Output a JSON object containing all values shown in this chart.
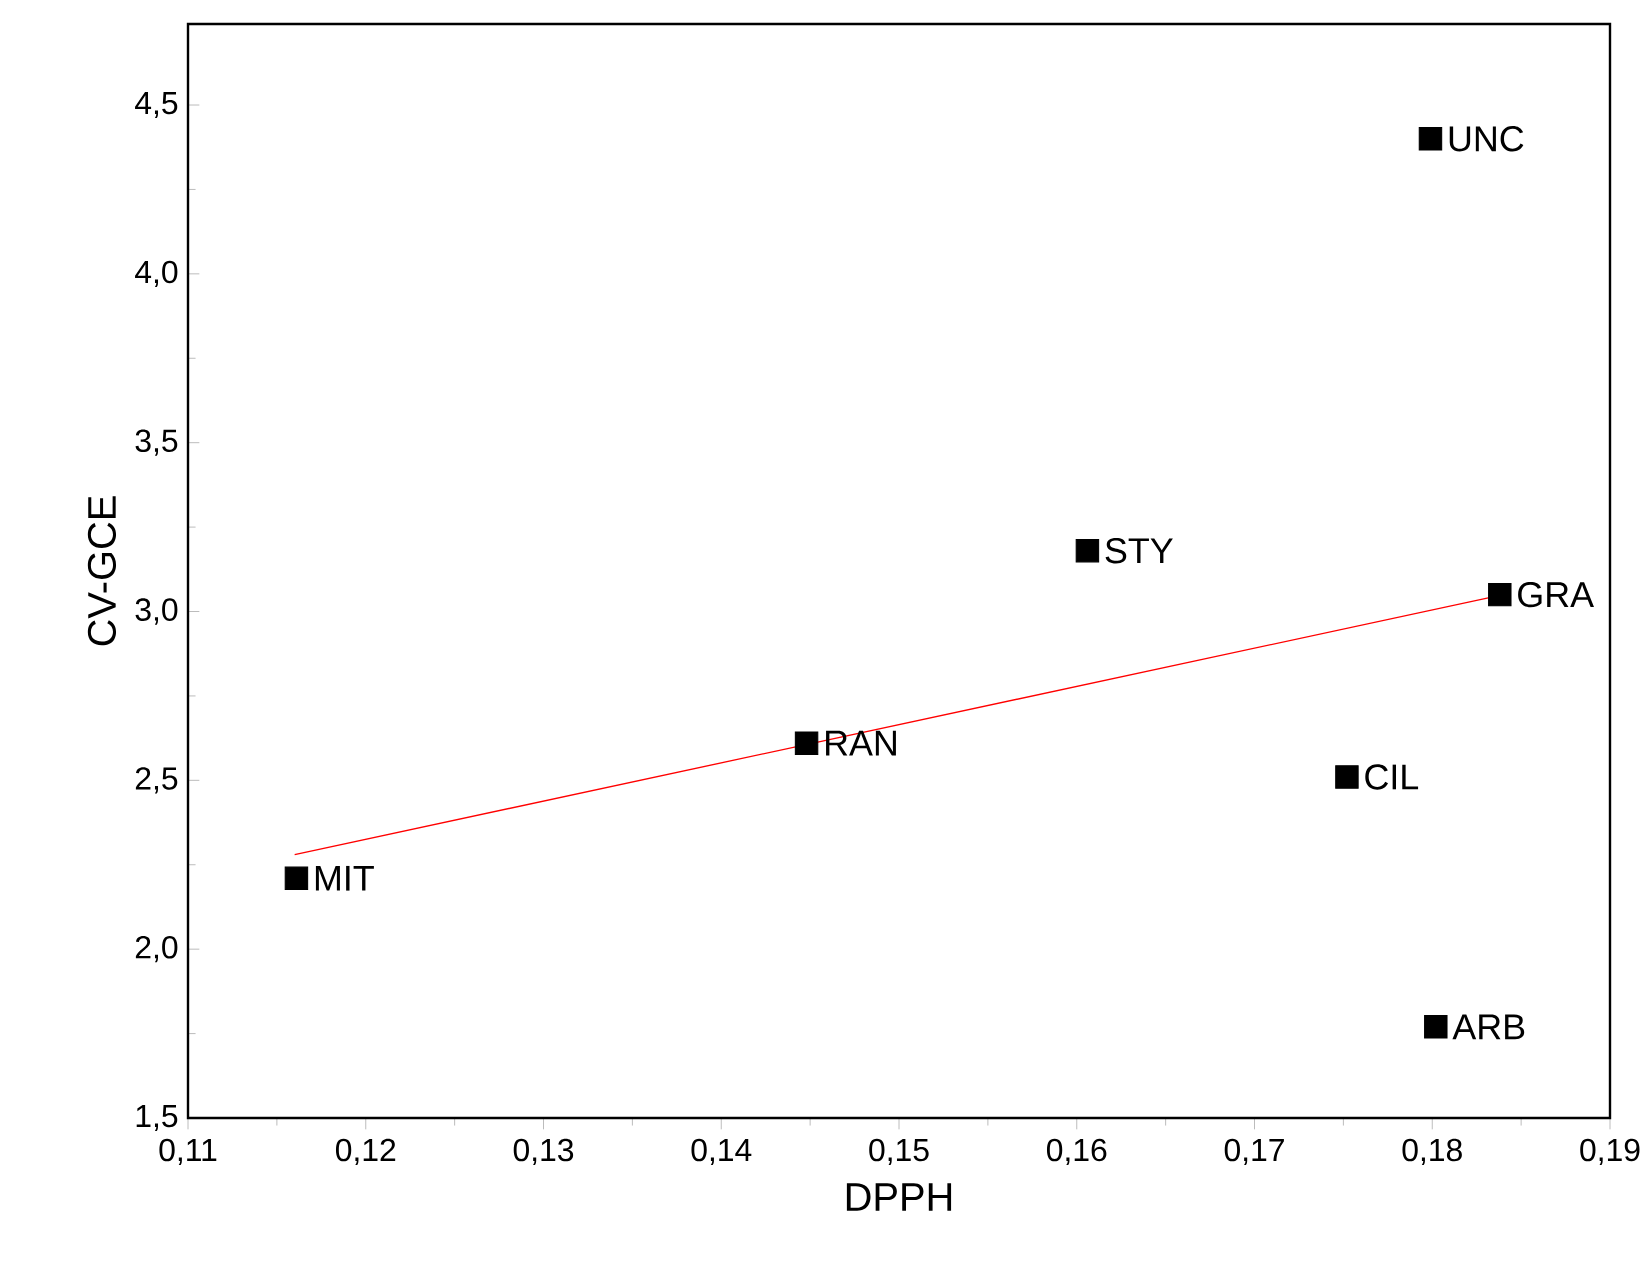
{
  "chart_data": {
    "type": "scatter",
    "xlabel": "DPPH",
    "ylabel": "CV-GCE",
    "xlim": [
      0.11,
      0.19
    ],
    "ylim": [
      1.5,
      4.74
    ],
    "xticks": [
      {
        "value": 0.11,
        "label": "0,11"
      },
      {
        "value": 0.12,
        "label": "0,12"
      },
      {
        "value": 0.13,
        "label": "0,13"
      },
      {
        "value": 0.14,
        "label": "0,14"
      },
      {
        "value": 0.15,
        "label": "0,15"
      },
      {
        "value": 0.16,
        "label": "0,16"
      },
      {
        "value": 0.17,
        "label": "0,17"
      },
      {
        "value": 0.18,
        "label": "0,18"
      },
      {
        "value": 0.19,
        "label": "0,19"
      }
    ],
    "yticks": [
      {
        "value": 1.5,
        "label": "1,5"
      },
      {
        "value": 2.0,
        "label": "2,0"
      },
      {
        "value": 2.5,
        "label": "2,5"
      },
      {
        "value": 3.0,
        "label": "3,0"
      },
      {
        "value": 3.5,
        "label": "3,5"
      },
      {
        "value": 4.0,
        "label": "4,0"
      },
      {
        "value": 4.5,
        "label": "4,5"
      }
    ],
    "marker": "square",
    "grid": false,
    "series": [
      {
        "color": "#000000",
        "x": [
          0.1799,
          0.1606,
          0.1838,
          0.1448,
          0.1752,
          0.1161,
          0.1802
        ],
        "values": [
          4.4,
          3.18,
          3.05,
          2.61,
          2.51,
          2.21,
          1.77
        ]
      },
      {
        "type": "line",
        "marker": "none",
        "color": "#ff0000",
        "x": [
          0.116,
          0.184
        ],
        "values": [
          2.28,
          3.05
        ]
      }
    ],
    "annotations": [
      {
        "text": "UNC",
        "x": 0.1799,
        "y": 4.4
      },
      {
        "text": "STY",
        "x": 0.1606,
        "y": 3.18
      },
      {
        "text": "GRA",
        "x": 0.1838,
        "y": 3.05
      },
      {
        "text": "RAN",
        "x": 0.1448,
        "y": 2.61
      },
      {
        "text": "CIL",
        "x": 0.1752,
        "y": 2.51
      },
      {
        "text": "MIT",
        "x": 0.1161,
        "y": 2.21
      },
      {
        "text": "ARB",
        "x": 0.1802,
        "y": 1.77
      }
    ]
  }
}
